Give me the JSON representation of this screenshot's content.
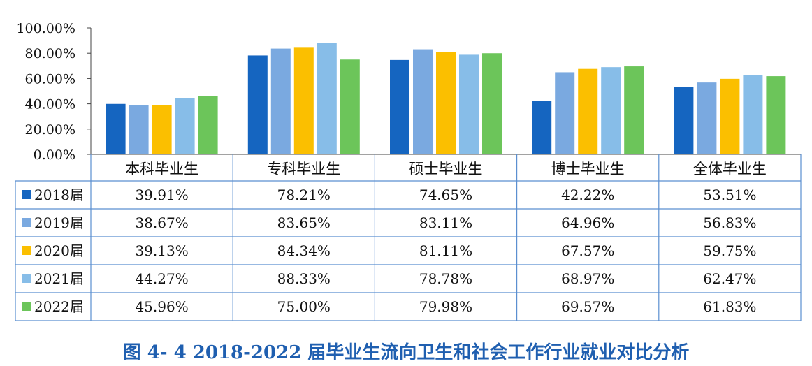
{
  "chart_data": {
    "type": "bar",
    "title": "",
    "categories": [
      "本科毕业生",
      "专科毕业生",
      "硕士毕业生",
      "博士毕业生",
      "全体毕业生"
    ],
    "y_ticks": [
      "0.00%",
      "20.00%",
      "40.00%",
      "60.00%",
      "80.00%",
      "100.00%"
    ],
    "ylim": [
      0,
      100
    ],
    "grid": false,
    "legend": "table-left",
    "series": [
      {
        "name": "2018届",
        "color": "#1565c0",
        "values": [
          39.91,
          78.21,
          74.65,
          42.22,
          53.51
        ],
        "labels": [
          "39.91%",
          "78.21%",
          "74.65%",
          "42.22%",
          "53.51%"
        ]
      },
      {
        "name": "2019届",
        "color": "#7aa9e0",
        "values": [
          38.67,
          83.65,
          83.11,
          64.96,
          56.83
        ],
        "labels": [
          "38.67%",
          "83.65%",
          "83.11%",
          "64.96%",
          "56.83%"
        ]
      },
      {
        "name": "2020届",
        "color": "#fbbf00",
        "values": [
          39.13,
          84.34,
          81.11,
          67.57,
          59.75
        ],
        "labels": [
          "39.13%",
          "84.34%",
          "81.11%",
          "67.57%",
          "59.75%"
        ]
      },
      {
        "name": "2021届",
        "color": "#87bde8",
        "values": [
          44.27,
          88.33,
          78.78,
          68.97,
          62.47
        ],
        "labels": [
          "44.27%",
          "88.33%",
          "78.78%",
          "68.97%",
          "62.47%"
        ]
      },
      {
        "name": "2022届",
        "color": "#6cc55a",
        "values": [
          45.96,
          75.0,
          79.98,
          69.57,
          61.83
        ],
        "labels": [
          "45.96%",
          "75.00%",
          "79.98%",
          "69.57%",
          "61.83%"
        ]
      }
    ]
  },
  "caption": "图 4- 4 2018-2022 届毕业生流向卫生和社会工作行业就业对比分析"
}
